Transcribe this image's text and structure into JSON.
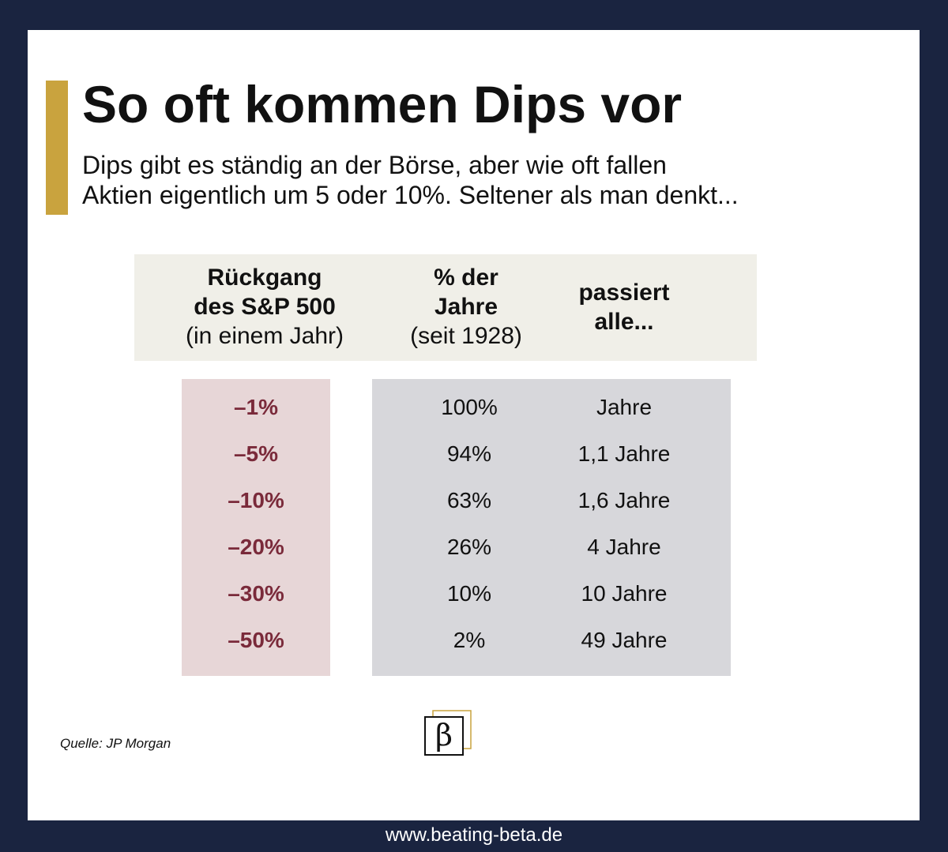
{
  "title": "So oft kommen Dips vor",
  "subtitle": {
    "line1": "Dips gibt es ständig an der Börse, aber wie oft fallen",
    "line2": "Aktien eigentlich um 5 oder 10%. Seltener als man denkt..."
  },
  "table": {
    "headers": {
      "decline": {
        "line1": "Rückgang",
        "line2": "des S&P 500",
        "line3": "(in einem Jahr)"
      },
      "pct_years": {
        "line1": "% der",
        "line2": "Jahre",
        "line3": "(seit 1928)"
      },
      "happens_every": {
        "line1": "passiert",
        "line2": "alle..."
      }
    },
    "rows": [
      {
        "decline": "–1%",
        "pct_years": "100%",
        "every": "Jahre"
      },
      {
        "decline": "–5%",
        "pct_years": "94%",
        "every": "1,1 Jahre"
      },
      {
        "decline": "–10%",
        "pct_years": "63%",
        "every": "1,6 Jahre"
      },
      {
        "decline": "–20%",
        "pct_years": "26%",
        "every": "4 Jahre"
      },
      {
        "decline": "–30%",
        "pct_years": "10%",
        "every": "10 Jahre"
      },
      {
        "decline": "–50%",
        "pct_years": "2%",
        "every": "49 Jahre"
      }
    ]
  },
  "source": "Quelle: JP Morgan",
  "logo_icon": "beta-logo-icon",
  "footer_url": "www.beating-beta.de",
  "colors": {
    "accent": "#c9a33e",
    "frame": "#1a2440",
    "decline_text": "#7a2a3a",
    "decline_bg": "#e7d6d7",
    "values_bg": "#d7d7db",
    "header_bg": "#f0efe8"
  }
}
